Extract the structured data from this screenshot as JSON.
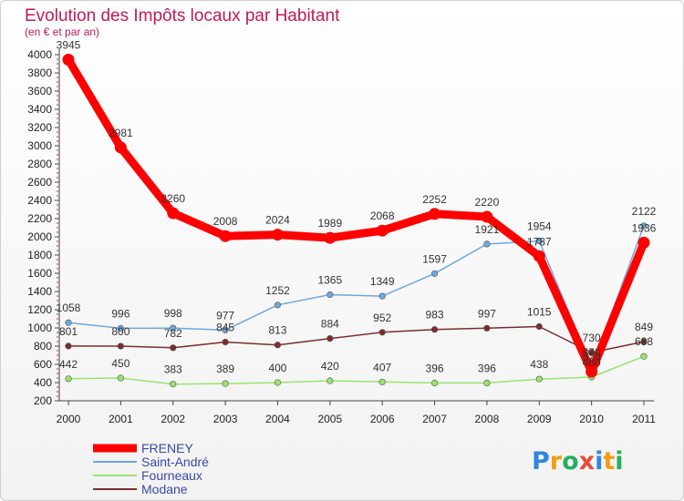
{
  "chart_data": {
    "type": "line",
    "title": "Evolution des Impôts locaux par Habitant",
    "subtitle": "(en € et par an)",
    "x": [
      "2000",
      "2001",
      "2002",
      "2003",
      "2004",
      "2005",
      "2006",
      "2007",
      "2008",
      "2009",
      "2010",
      "2011"
    ],
    "ylim": [
      200,
      4000
    ],
    "yticks": [
      200,
      400,
      600,
      800,
      1000,
      1200,
      1400,
      1600,
      1800,
      2000,
      2200,
      2400,
      2600,
      2800,
      3000,
      3200,
      3400,
      3600,
      3800,
      4000
    ],
    "grid": false,
    "legend_position": "bottom-left",
    "series": [
      {
        "name": "FRENEY",
        "color": "#ff0000",
        "values": [
          3945,
          2981,
          2260,
          2008,
          2024,
          1989,
          2068,
          2252,
          2220,
          1787,
          520,
          1936
        ],
        "labels": [
          "3945",
          "2981",
          "2260",
          "2008",
          "2024",
          "1989",
          "2068",
          "2252",
          "2220",
          "1787",
          "520",
          "1936"
        ]
      },
      {
        "name": "Saint-André",
        "color": "#6fa8dc",
        "values": [
          1058,
          996,
          998,
          977,
          1252,
          1365,
          1349,
          1597,
          1921,
          1954,
          570,
          2122
        ],
        "labels": [
          "1058",
          "996",
          "998",
          "977",
          "1252",
          "1365",
          "1349",
          "1597",
          "1921",
          "1954",
          "570",
          "2122"
        ]
      },
      {
        "name": "Fourneaux",
        "color": "#9be36b",
        "values": [
          442,
          450,
          383,
          389,
          400,
          420,
          407,
          396,
          396,
          438,
          460,
          688
        ],
        "labels": [
          "442",
          "450",
          "383",
          "389",
          "400",
          "420",
          "407",
          "396",
          "396",
          "438",
          "460",
          "688"
        ]
      },
      {
        "name": "Modane",
        "color": "#7b2d2d",
        "values": [
          801,
          800,
          782,
          845,
          813,
          884,
          952,
          983,
          997,
          1015,
          730,
          849
        ],
        "labels": [
          "801",
          "800",
          "782",
          "845",
          "813",
          "884",
          "952",
          "983",
          "997",
          "1015",
          "730",
          "849"
        ]
      }
    ]
  },
  "logo": {
    "letters": [
      "P",
      "r",
      "o",
      "x",
      "i",
      "t",
      "i"
    ]
  }
}
